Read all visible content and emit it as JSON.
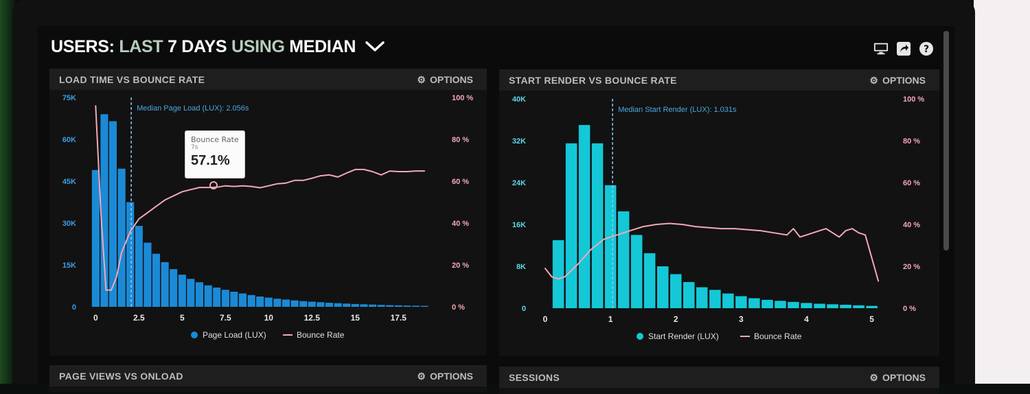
{
  "header": {
    "prefix": "USERS:",
    "range": "LAST",
    "days": "7 DAYS",
    "using": "USING",
    "stat": "MEDIAN",
    "icons": [
      "monitor-icon",
      "share-icon",
      "help-icon"
    ]
  },
  "panels": {
    "p1": {
      "title": "LOAD TIME VS BOUNCE RATE",
      "options": "OPTIONS"
    },
    "p2": {
      "title": "START RENDER VS BOUNCE RATE",
      "options": "OPTIONS"
    },
    "p3": {
      "title": "PAGE VIEWS VS ONLOAD",
      "options": "OPTIONS"
    },
    "p4": {
      "title": "SESSIONS",
      "options": "OPTIONS"
    }
  },
  "tooltip": {
    "title": "Bounce Rate",
    "sub": "7s",
    "value": "57.1%"
  },
  "colors": {
    "bar1": "#1b8ad6",
    "bar2": "#14c8d8",
    "line": "#f4a8b6",
    "axisLeft1": "#3a9fe0",
    "axisLeft2": "#5fd6e8",
    "axisRight": "#f4a8b6",
    "median": "#4aa8e0"
  },
  "chart_data": [
    {
      "type": "bar",
      "title": "LOAD TIME VS BOUNCE RATE",
      "x_ticks": [
        "0",
        "2.5",
        "5",
        "7.5",
        "10",
        "12.5",
        "15",
        "17.5"
      ],
      "x_tick_values": [
        0,
        2.5,
        5,
        7.5,
        10,
        12.5,
        15,
        17.5
      ],
      "xlim": [
        -0.25,
        19.75
      ],
      "y_left_ticks": [
        "0",
        "15K",
        "30K",
        "45K",
        "60K",
        "75K"
      ],
      "ylim_left": [
        0,
        75000
      ],
      "y_right_ticks": [
        "0 %",
        "20 %",
        "40 %",
        "60 %",
        "80 %",
        "100 %"
      ],
      "ylim_right": [
        0,
        100
      ],
      "bin_width": 0.5,
      "series": [
        {
          "name": "Page Load (LUX)",
          "axis": "left",
          "x": [
            0,
            0.5,
            1,
            1.5,
            2,
            2.5,
            3,
            3.5,
            4,
            4.5,
            5,
            5.5,
            6,
            6.5,
            7,
            7.5,
            8,
            8.5,
            9,
            9.5,
            10,
            10.5,
            11,
            11.5,
            12,
            12.5,
            13,
            13.5,
            14,
            14.5,
            15,
            15.5,
            16,
            16.5,
            17,
            17.5,
            18,
            18.5,
            19
          ],
          "values": [
            49000,
            69000,
            66500,
            49500,
            37500,
            29000,
            23000,
            19000,
            16000,
            13500,
            11500,
            10000,
            8800,
            7700,
            6900,
            6100,
            5400,
            4800,
            4200,
            3700,
            3300,
            2900,
            2600,
            2300,
            2050,
            1850,
            1650,
            1450,
            1300,
            1150,
            1000,
            900,
            800,
            700,
            600,
            520,
            450,
            400,
            350
          ]
        },
        {
          "name": "Bounce Rate",
          "axis": "right",
          "type": "line",
          "x": [
            0,
            0.3,
            0.6,
            0.9,
            1.2,
            1.5,
            2,
            2.5,
            3,
            3.5,
            4,
            4.5,
            5,
            5.5,
            6,
            6.5,
            7,
            7.5,
            8,
            8.5,
            9,
            9.5,
            10,
            10.5,
            11,
            11.5,
            12,
            12.5,
            13,
            13.5,
            14,
            14.5,
            15,
            15.5,
            16,
            16.5,
            17,
            17.5,
            18,
            18.5,
            19
          ],
          "values": [
            96,
            45,
            8,
            8,
            14,
            26,
            36,
            42,
            45,
            48,
            51,
            53,
            55,
            56,
            57,
            57,
            57.1,
            57.8,
            57.5,
            57.8,
            57.5,
            56.9,
            57.8,
            58.8,
            59.1,
            60.4,
            60.4,
            61.4,
            62.6,
            63,
            62,
            63.9,
            65.6,
            65.6,
            64.6,
            63,
            64.9,
            64.6,
            64.6,
            64.9,
            64.9
          ]
        }
      ],
      "annotations": [
        {
          "type": "vline",
          "x": 2.056,
          "label": "Median Page Load (LUX): 2.056s"
        }
      ],
      "legend": [
        "Page Load (LUX)",
        "Bounce Rate"
      ],
      "legend_position": "bottom"
    },
    {
      "type": "bar",
      "title": "START RENDER VS BOUNCE RATE",
      "x_ticks": [
        "0",
        "1",
        "2",
        "3",
        "4",
        "5"
      ],
      "x_tick_values": [
        0,
        1,
        2,
        3,
        4,
        5
      ],
      "xlim": [
        0,
        5.13
      ],
      "y_left_ticks": [
        "0",
        "8K",
        "16K",
        "24K",
        "32K",
        "40K"
      ],
      "ylim_left": [
        0,
        40000
      ],
      "y_right_ticks": [
        "0 %",
        "20 %",
        "40 %",
        "60 %",
        "80 %",
        "100 %"
      ],
      "ylim_right": [
        0,
        100
      ],
      "bin_width": 0.2,
      "series": [
        {
          "name": "Start Render (LUX)",
          "axis": "left",
          "x": [
            0.2,
            0.4,
            0.6,
            0.8,
            1.0,
            1.2,
            1.4,
            1.6,
            1.8,
            2.0,
            2.2,
            2.4,
            2.6,
            2.8,
            3.0,
            3.2,
            3.4,
            3.6,
            3.8,
            4.0,
            4.2,
            4.4,
            4.6,
            4.8,
            5.0
          ],
          "values": [
            13000,
            31500,
            35000,
            31500,
            23500,
            18500,
            14000,
            10500,
            8000,
            6500,
            5000,
            4000,
            3500,
            2800,
            2300,
            1900,
            1600,
            1400,
            1200,
            1000,
            850,
            750,
            650,
            550,
            450
          ]
        },
        {
          "name": "Bounce Rate",
          "axis": "right",
          "type": "line",
          "x": [
            0,
            0.1,
            0.2,
            0.3,
            0.5,
            0.7,
            0.9,
            1.1,
            1.3,
            1.5,
            1.7,
            1.9,
            2.1,
            2.3,
            2.5,
            2.7,
            2.9,
            3.1,
            3.3,
            3.5,
            3.6,
            3.7,
            3.8,
            3.9,
            4.0,
            4.1,
            4.2,
            4.3,
            4.4,
            4.5,
            4.6,
            4.7,
            4.8,
            4.9,
            5.0,
            5.1
          ],
          "values": [
            19,
            15,
            14,
            15,
            21,
            28,
            33,
            35,
            37,
            39,
            40,
            40.5,
            40,
            39,
            38.5,
            38,
            38,
            37.5,
            37,
            36,
            35.5,
            35,
            38,
            34,
            35,
            36,
            37,
            38,
            36,
            34,
            37,
            38,
            36,
            35,
            24,
            13
          ]
        }
      ],
      "annotations": [
        {
          "type": "vline",
          "x": 1.031,
          "label": "Median Start Render (LUX): 1.031s"
        }
      ],
      "legend": [
        "Start Render (LUX)",
        "Bounce Rate"
      ],
      "legend_position": "bottom"
    }
  ]
}
